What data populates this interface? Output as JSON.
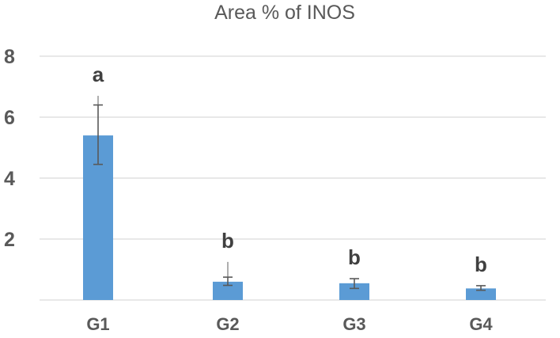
{
  "chart_data": {
    "type": "bar",
    "title": "Area % of INOS",
    "xlabel": "",
    "ylabel": "",
    "categories": [
      "G1",
      "G2",
      "G3",
      "G4"
    ],
    "values": [
      5.4,
      0.6,
      0.55,
      0.38
    ],
    "error_lower": [
      4.45,
      0.48,
      0.38,
      0.32
    ],
    "error_upper": [
      6.4,
      0.75,
      0.7,
      0.47
    ],
    "error_upper_light": [
      6.7,
      1.25,
      0.55,
      0.38
    ],
    "significance_labels": [
      "a",
      "b",
      "b",
      "b"
    ],
    "ylim": [
      0,
      8
    ],
    "yticks": [
      2,
      4,
      6,
      8
    ],
    "grid": true,
    "bar_color": "#5b9bd5",
    "legend": "none"
  }
}
